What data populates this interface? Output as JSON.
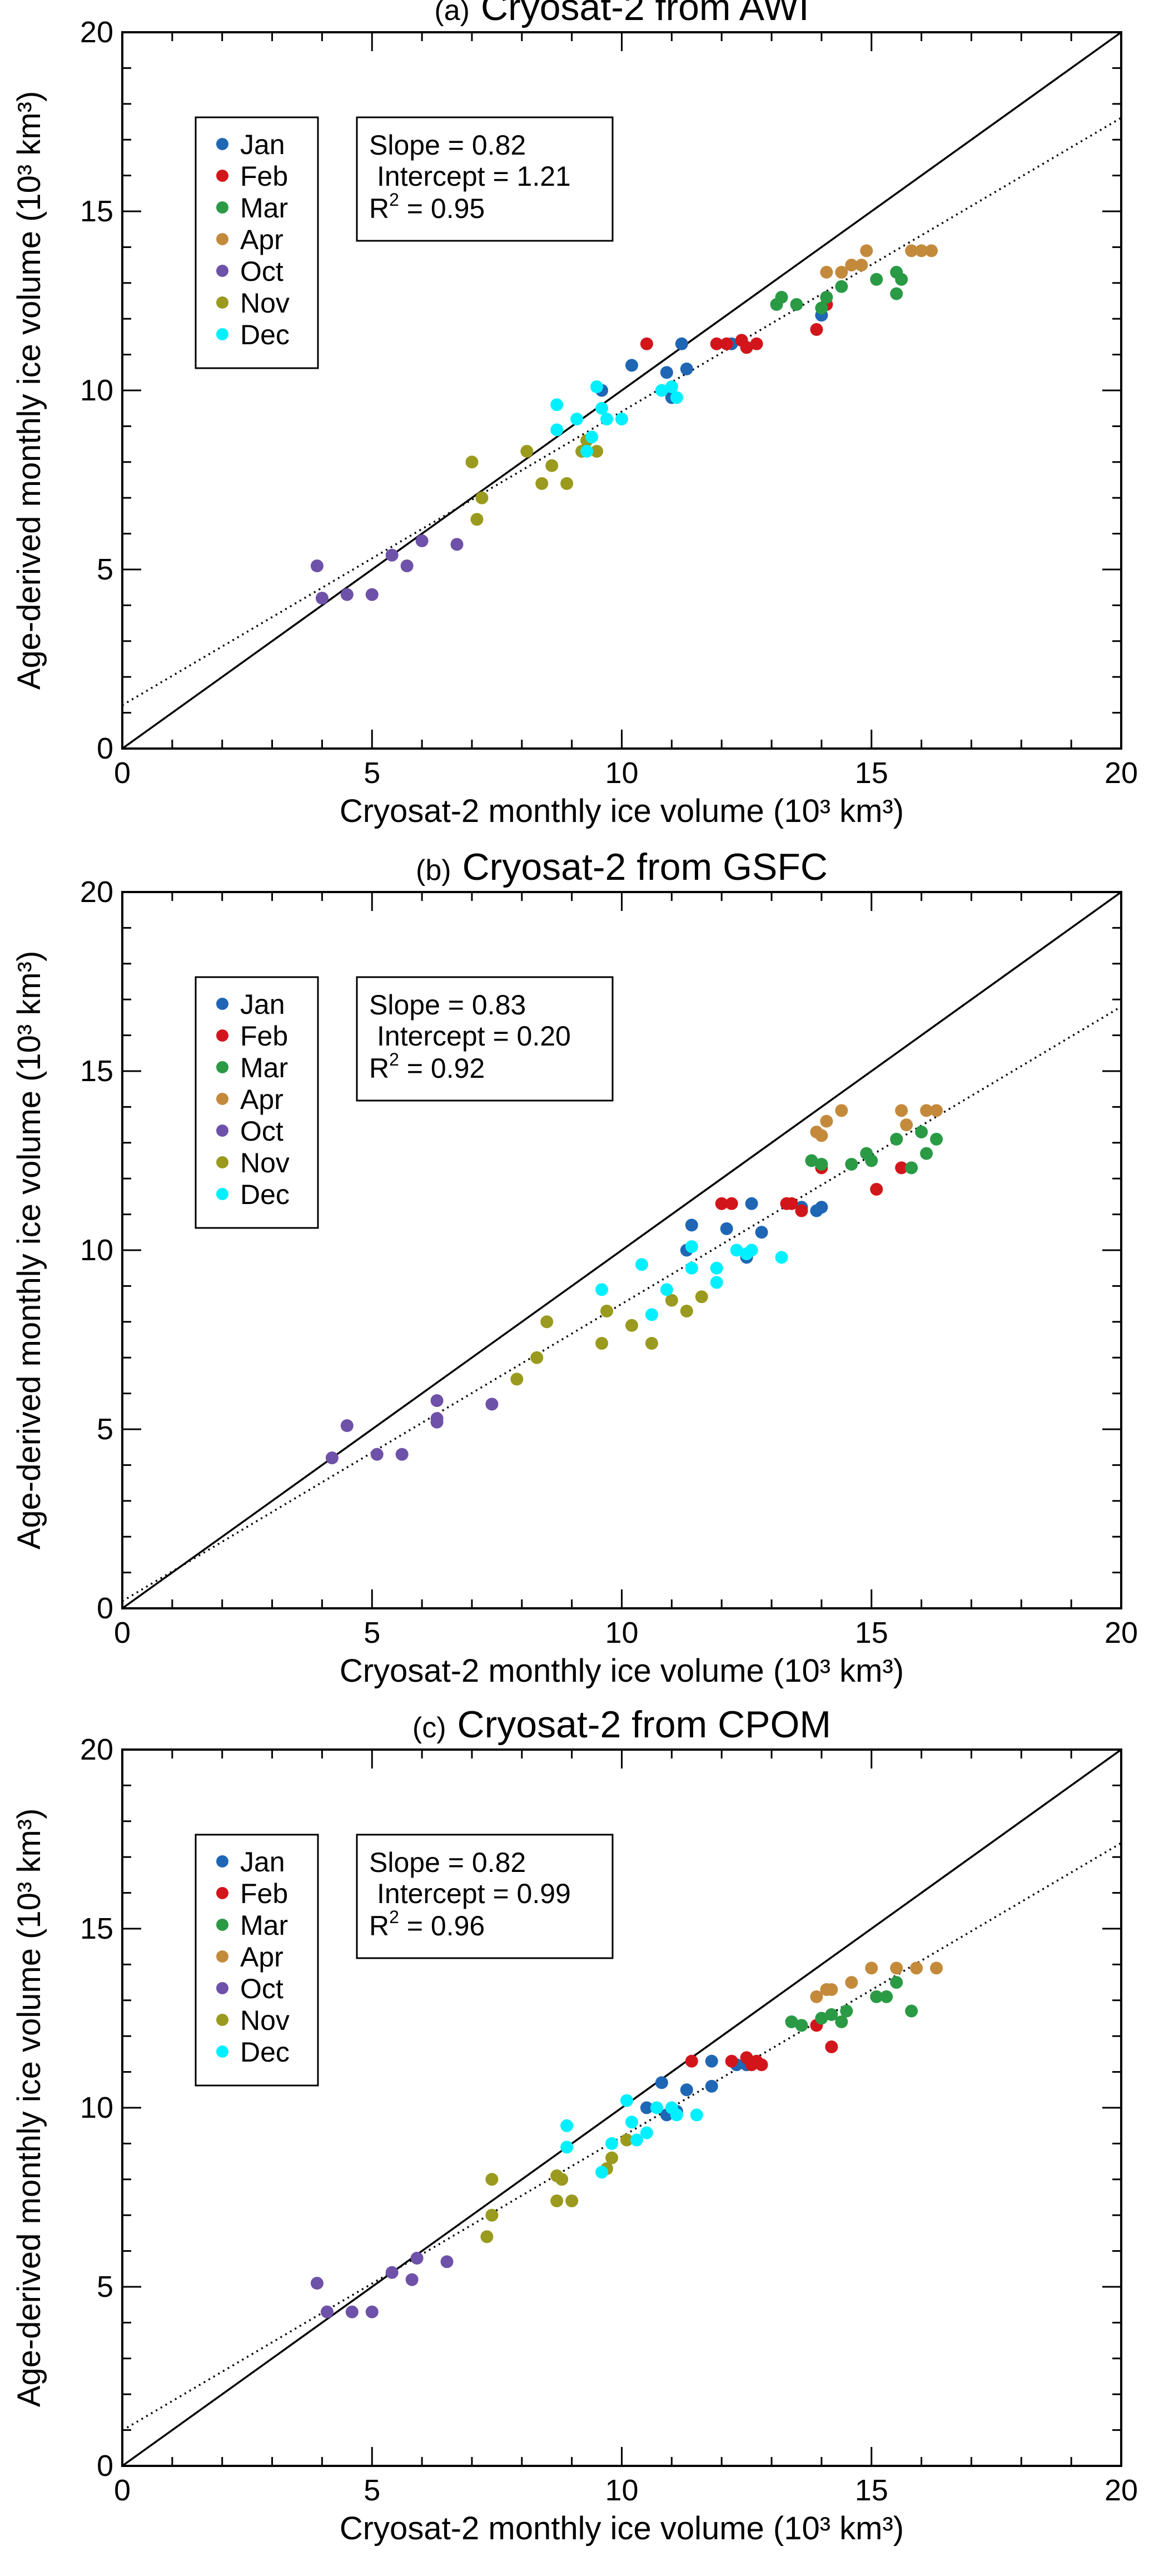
{
  "months": [
    {
      "key": "jan",
      "label": "Jan",
      "color": "#1f66b5"
    },
    {
      "key": "feb",
      "label": "Feb",
      "color": "#d2151b"
    },
    {
      "key": "mar",
      "label": "Mar",
      "color": "#2a9a45"
    },
    {
      "key": "apr",
      "label": "Apr",
      "color": "#c48a3c"
    },
    {
      "key": "oct",
      "label": "Oct",
      "color": "#6e51a8"
    },
    {
      "key": "nov",
      "label": "Nov",
      "color": "#9a9a1e"
    },
    {
      "key": "dec",
      "label": "Dec",
      "color": "#00f0ff"
    }
  ],
  "chart_data": [
    {
      "type": "scatter",
      "panel_label": "(a)",
      "title": "Cryosat-2 from AWI",
      "xlabel": "Cryosat-2 monthly ice volume (10³ km³)",
      "ylabel": "Age-derived monthly ice volume (10³ km³)",
      "xlim": [
        0,
        20
      ],
      "ylim": [
        0,
        20
      ],
      "xticks": [
        "0",
        "5",
        "10",
        "15",
        "20"
      ],
      "yticks": [
        "0",
        "5",
        "10",
        "15",
        "20"
      ],
      "stats": {
        "slope": "Slope = 0.82",
        "intercept": "Intercept = 1.21",
        "r2_prefix": "R",
        "r2_value": " = 0.95"
      },
      "fit": {
        "slope": 0.82,
        "intercept": 1.21,
        "style": "dotted"
      },
      "reference_line": "1:1",
      "series": [
        {
          "month": "jan",
          "points": [
            [
              9.6,
              10.0
            ],
            [
              10.2,
              10.7
            ],
            [
              10.9,
              10.5
            ],
            [
              11.0,
              9.8
            ],
            [
              11.2,
              11.3
            ],
            [
              11.3,
              10.6
            ],
            [
              12.2,
              11.3
            ],
            [
              12.5,
              11.2
            ],
            [
              14.0,
              12.1
            ]
          ]
        },
        {
          "month": "feb",
          "points": [
            [
              10.5,
              11.3
            ],
            [
              11.9,
              11.3
            ],
            [
              12.1,
              11.3
            ],
            [
              12.4,
              11.4
            ],
            [
              12.5,
              11.2
            ],
            [
              12.7,
              11.3
            ],
            [
              13.9,
              11.7
            ],
            [
              14.1,
              12.4
            ]
          ]
        },
        {
          "month": "mar",
          "points": [
            [
              13.1,
              12.4
            ],
            [
              13.2,
              12.6
            ],
            [
              13.5,
              12.4
            ],
            [
              14.0,
              12.3
            ],
            [
              14.1,
              12.6
            ],
            [
              14.4,
              12.9
            ],
            [
              15.1,
              13.1
            ],
            [
              15.5,
              13.3
            ],
            [
              15.5,
              12.7
            ],
            [
              15.6,
              13.1
            ]
          ]
        },
        {
          "month": "apr",
          "points": [
            [
              14.1,
              13.3
            ],
            [
              14.4,
              13.3
            ],
            [
              14.6,
              13.5
            ],
            [
              14.8,
              13.5
            ],
            [
              14.9,
              13.9
            ],
            [
              15.8,
              13.9
            ],
            [
              16.0,
              13.9
            ],
            [
              16.2,
              13.9
            ]
          ]
        },
        {
          "month": "oct",
          "points": [
            [
              3.9,
              5.1
            ],
            [
              4.0,
              4.2
            ],
            [
              4.5,
              4.3
            ],
            [
              5.0,
              4.3
            ],
            [
              5.4,
              5.4
            ],
            [
              5.7,
              5.1
            ],
            [
              6.0,
              5.8
            ],
            [
              6.7,
              5.7
            ]
          ]
        },
        {
          "month": "nov",
          "points": [
            [
              7.0,
              8.0
            ],
            [
              7.1,
              6.4
            ],
            [
              7.2,
              7.0
            ],
            [
              8.1,
              8.3
            ],
            [
              8.4,
              7.4
            ],
            [
              8.6,
              7.9
            ],
            [
              8.9,
              7.4
            ],
            [
              9.2,
              8.3
            ],
            [
              9.3,
              8.6
            ],
            [
              9.5,
              8.3
            ]
          ]
        },
        {
          "month": "dec",
          "points": [
            [
              8.7,
              9.6
            ],
            [
              8.7,
              8.9
            ],
            [
              9.1,
              9.2
            ],
            [
              9.3,
              8.3
            ],
            [
              9.4,
              8.7
            ],
            [
              9.5,
              10.1
            ],
            [
              9.6,
              9.5
            ],
            [
              9.7,
              9.2
            ],
            [
              10.0,
              9.2
            ],
            [
              10.8,
              10.0
            ],
            [
              11.0,
              10.1
            ],
            [
              11.1,
              9.8
            ]
          ]
        }
      ]
    },
    {
      "type": "scatter",
      "panel_label": "(b)",
      "title": "Cryosat-2 from GSFC",
      "xlabel": "Cryosat-2 monthly ice volume (10³ km³)",
      "ylabel": "Age-derived monthly ice volume (10³ km³)",
      "xlim": [
        0,
        20
      ],
      "ylim": [
        0,
        20
      ],
      "xticks": [
        "0",
        "5",
        "10",
        "15",
        "20"
      ],
      "yticks": [
        "0",
        "5",
        "10",
        "15",
        "20"
      ],
      "stats": {
        "slope": "Slope = 0.83",
        "intercept": "Intercept = 0.20",
        "r2_prefix": "R",
        "r2_value": " = 0.92"
      },
      "fit": {
        "slope": 0.83,
        "intercept": 0.2,
        "style": "dotted"
      },
      "reference_line": "1:1",
      "series": [
        {
          "month": "jan",
          "points": [
            [
              11.3,
              10.0
            ],
            [
              11.4,
              10.7
            ],
            [
              12.1,
              10.6
            ],
            [
              12.5,
              9.8
            ],
            [
              12.6,
              11.3
            ],
            [
              12.8,
              10.5
            ],
            [
              13.6,
              11.2
            ],
            [
              13.9,
              11.1
            ],
            [
              14.0,
              11.2
            ]
          ]
        },
        {
          "month": "feb",
          "points": [
            [
              12.0,
              11.3
            ],
            [
              12.2,
              11.3
            ],
            [
              13.3,
              11.3
            ],
            [
              13.4,
              11.3
            ],
            [
              13.6,
              11.1
            ],
            [
              14.0,
              12.3
            ],
            [
              15.1,
              11.7
            ],
            [
              15.6,
              12.3
            ]
          ]
        },
        {
          "month": "mar",
          "points": [
            [
              13.8,
              12.5
            ],
            [
              14.0,
              12.4
            ],
            [
              14.6,
              12.4
            ],
            [
              14.9,
              12.7
            ],
            [
              15.0,
              12.5
            ],
            [
              15.5,
              13.1
            ],
            [
              15.8,
              12.3
            ],
            [
              16.0,
              13.3
            ],
            [
              16.1,
              12.7
            ],
            [
              16.3,
              13.1
            ]
          ]
        },
        {
          "month": "apr",
          "points": [
            [
              13.9,
              13.3
            ],
            [
              14.0,
              13.2
            ],
            [
              14.1,
              13.6
            ],
            [
              14.4,
              13.9
            ],
            [
              15.6,
              13.9
            ],
            [
              15.7,
              13.5
            ],
            [
              16.1,
              13.9
            ],
            [
              16.3,
              13.9
            ]
          ]
        },
        {
          "month": "oct",
          "points": [
            [
              4.2,
              4.2
            ],
            [
              4.5,
              5.1
            ],
            [
              5.1,
              4.3
            ],
            [
              5.6,
              4.3
            ],
            [
              6.3,
              5.3
            ],
            [
              6.3,
              5.2
            ],
            [
              6.3,
              5.8
            ],
            [
              7.4,
              5.7
            ]
          ]
        },
        {
          "month": "nov",
          "points": [
            [
              7.9,
              6.4
            ],
            [
              8.3,
              7.0
            ],
            [
              8.5,
              8.0
            ],
            [
              9.6,
              7.4
            ],
            [
              9.7,
              8.3
            ],
            [
              10.2,
              7.9
            ],
            [
              10.6,
              7.4
            ],
            [
              11.0,
              8.6
            ],
            [
              11.3,
              8.3
            ],
            [
              11.6,
              8.7
            ]
          ]
        },
        {
          "month": "dec",
          "points": [
            [
              9.6,
              8.9
            ],
            [
              10.4,
              9.6
            ],
            [
              10.6,
              8.2
            ],
            [
              10.9,
              8.9
            ],
            [
              11.4,
              10.1
            ],
            [
              11.4,
              9.5
            ],
            [
              11.9,
              9.5
            ],
            [
              11.9,
              9.1
            ],
            [
              12.3,
              10.0
            ],
            [
              12.5,
              9.9
            ],
            [
              12.6,
              10.0
            ],
            [
              13.2,
              9.8
            ]
          ]
        }
      ]
    },
    {
      "type": "scatter",
      "panel_label": "(c)",
      "title": "Cryosat-2 from CPOM",
      "xlabel": "Cryosat-2 monthly ice volume (10³ km³)",
      "ylabel": "Age-derived monthly ice volume (10³ km³)",
      "xlim": [
        0,
        20
      ],
      "ylim": [
        0,
        20
      ],
      "xticks": [
        "0",
        "5",
        "10",
        "15",
        "20"
      ],
      "yticks": [
        "0",
        "5",
        "10",
        "15",
        "20"
      ],
      "stats": {
        "slope": "Slope = 0.82",
        "intercept": "Intercept = 0.99",
        "r2_prefix": "R",
        "r2_value": " = 0.96"
      },
      "fit": {
        "slope": 0.82,
        "intercept": 0.99,
        "style": "dotted"
      },
      "reference_line": "1:1",
      "series": [
        {
          "month": "jan",
          "points": [
            [
              10.5,
              10.0
            ],
            [
              10.8,
              10.7
            ],
            [
              10.9,
              9.8
            ],
            [
              11.1,
              9.9
            ],
            [
              11.3,
              10.5
            ],
            [
              11.8,
              10.6
            ],
            [
              11.8,
              11.3
            ],
            [
              12.3,
              11.2
            ],
            [
              12.5,
              11.2
            ]
          ]
        },
        {
          "month": "feb",
          "points": [
            [
              11.4,
              11.3
            ],
            [
              12.2,
              11.3
            ],
            [
              12.5,
              11.4
            ],
            [
              12.6,
              11.2
            ],
            [
              12.7,
              11.3
            ],
            [
              12.8,
              11.2
            ],
            [
              13.9,
              12.3
            ],
            [
              14.2,
              11.7
            ]
          ]
        },
        {
          "month": "mar",
          "points": [
            [
              13.4,
              12.4
            ],
            [
              13.6,
              12.3
            ],
            [
              14.0,
              12.5
            ],
            [
              14.2,
              12.6
            ],
            [
              14.4,
              12.4
            ],
            [
              14.5,
              12.7
            ],
            [
              15.1,
              13.1
            ],
            [
              15.3,
              13.1
            ],
            [
              15.5,
              13.5
            ],
            [
              15.8,
              12.7
            ]
          ]
        },
        {
          "month": "apr",
          "points": [
            [
              13.9,
              13.1
            ],
            [
              14.1,
              13.3
            ],
            [
              14.2,
              13.3
            ],
            [
              14.6,
              13.5
            ],
            [
              15.0,
              13.9
            ],
            [
              15.5,
              13.9
            ],
            [
              15.9,
              13.9
            ],
            [
              16.3,
              13.9
            ]
          ]
        },
        {
          "month": "oct",
          "points": [
            [
              3.9,
              5.1
            ],
            [
              4.1,
              4.3
            ],
            [
              4.6,
              4.3
            ],
            [
              5.0,
              4.3
            ],
            [
              5.4,
              5.4
            ],
            [
              5.8,
              5.2
            ],
            [
              5.9,
              5.8
            ],
            [
              6.5,
              5.7
            ]
          ]
        },
        {
          "month": "nov",
          "points": [
            [
              7.3,
              6.4
            ],
            [
              7.4,
              7.0
            ],
            [
              7.4,
              8.0
            ],
            [
              8.7,
              8.1
            ],
            [
              8.7,
              7.4
            ],
            [
              8.8,
              8.0
            ],
            [
              9.0,
              7.4
            ],
            [
              9.7,
              8.3
            ],
            [
              9.8,
              8.6
            ],
            [
              10.1,
              9.1
            ]
          ]
        },
        {
          "month": "dec",
          "points": [
            [
              8.9,
              9.5
            ],
            [
              8.9,
              8.9
            ],
            [
              9.6,
              8.2
            ],
            [
              9.8,
              9.0
            ],
            [
              10.1,
              10.2
            ],
            [
              10.2,
              9.6
            ],
            [
              10.3,
              9.1
            ],
            [
              10.5,
              9.3
            ],
            [
              10.7,
              10.0
            ],
            [
              11.0,
              10.0
            ],
            [
              11.1,
              9.8
            ],
            [
              11.5,
              9.8
            ]
          ]
        }
      ]
    }
  ]
}
